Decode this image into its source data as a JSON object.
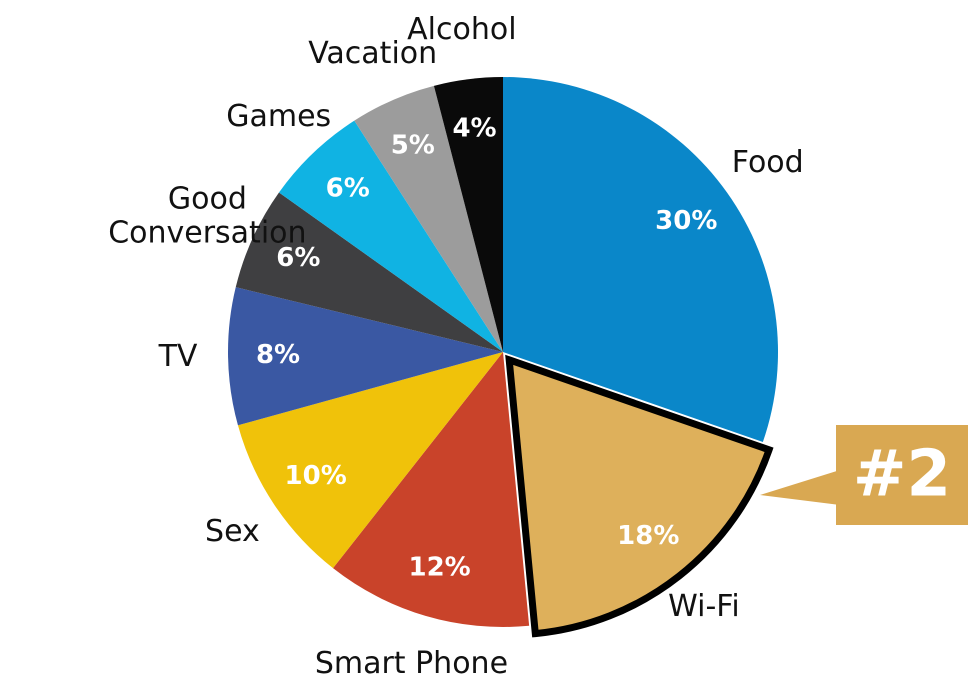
{
  "chart_data": {
    "type": "pie",
    "categories": [
      "Food",
      "Wi-Fi",
      "Smart Phone",
      "Sex",
      "TV",
      "Good Conversation",
      "Games",
      "Vacation",
      "Alcohol"
    ],
    "values": [
      30,
      18,
      12,
      10,
      8,
      6,
      6,
      5,
      4
    ],
    "value_labels": [
      "30%",
      "18%",
      "12%",
      "10%",
      "8%",
      "6%",
      "6%",
      "5%",
      "4%"
    ],
    "colors": [
      "#0a87c9",
      "#deb05b",
      "#c9432a",
      "#f0c20a",
      "#3a58a3",
      "#3f3f41",
      "#10b3e3",
      "#9c9c9c",
      "#0a0a0a"
    ],
    "highlighted": "Wi-Fi",
    "annotation": "#2"
  }
}
